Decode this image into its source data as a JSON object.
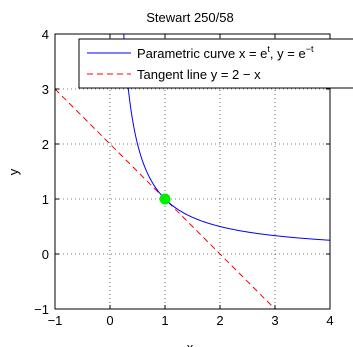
{
  "chart_data": {
    "type": "line",
    "title": "Stewart 250/58",
    "xlabel": "x",
    "ylabel": "y",
    "xlim": [
      -1,
      4
    ],
    "ylim": [
      -1,
      4
    ],
    "xticks": [
      -1,
      0,
      1,
      2,
      3,
      4
    ],
    "yticks": [
      -1,
      0,
      1,
      2,
      3,
      4
    ],
    "x_tick_labels": [
      "−1",
      "0",
      "1",
      "2",
      "3",
      "4"
    ],
    "y_tick_labels": [
      "−1",
      "0",
      "1",
      "2",
      "3",
      "4"
    ],
    "grid": true,
    "legend_position": "top-right",
    "series": [
      {
        "name": "Parametric curve x = e^t, y = e^−t",
        "legend_main": "Parametric curve x = e",
        "legend_sup": "t",
        "legend_mid": ", y = e",
        "legend_sup2": "−t",
        "color": "#0000ff",
        "style": "solid",
        "function": "y = 1/x",
        "x_range": [
          0.25,
          4
        ]
      },
      {
        "name": "Tangent line y = 2 − x",
        "color": "#ff0000",
        "style": "dashed",
        "function": "y = 2 - x",
        "x_range": [
          -1,
          3
        ]
      }
    ],
    "marker": {
      "x": 1,
      "y": 1,
      "color": "#00ee00"
    }
  }
}
